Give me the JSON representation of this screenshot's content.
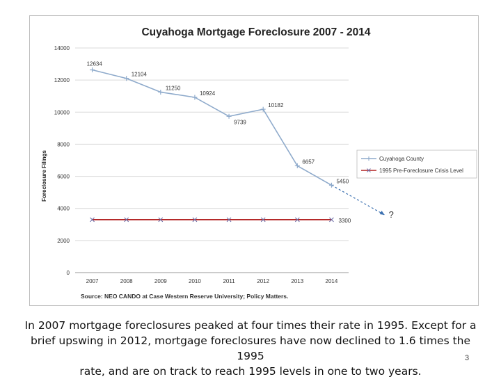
{
  "slide": {
    "caption_lines": [
      "In 2007 mortgage foreclosures peaked at four times their rate in 1995.  Except for a",
      "brief upswing in 2012, mortgage foreclosures have now declined to 1.6 times the 1995",
      "rate, and are on track to reach 1995 levels in one to two years."
    ],
    "page_number": "3"
  },
  "chart_data": {
    "type": "line",
    "title": "Cuyahoga Mortgage Foreclosure 2007 - 2014",
    "ylabel": "Foreclosure Filings",
    "xlabel": "",
    "categories": [
      "2007",
      "2008",
      "2009",
      "2010",
      "2011",
      "2012",
      "2013",
      "2014"
    ],
    "ylim": [
      0,
      14000
    ],
    "yticks": [
      "0",
      "2000",
      "4000",
      "6000",
      "8000",
      "10000",
      "12000",
      "14000"
    ],
    "grid": true,
    "legend_position": "right",
    "source": "Source:   NEO CANDO at Case Western Reserve University;  Policy Matters.",
    "series": [
      {
        "name": "Cuyahoga County",
        "color": "#8eaacb",
        "marker": "plus",
        "values": [
          12634,
          12104,
          11250,
          10924,
          9739,
          10182,
          6657,
          5450
        ],
        "labels": [
          "12634",
          "12104",
          "11250",
          "10924",
          "9739",
          "10182",
          "6657",
          "5450"
        ]
      },
      {
        "name": "1995 Pre-Foreclosure Crisis Level",
        "color": "#b22222",
        "marker": "x",
        "marker_color": "#6f6fa8",
        "values": [
          3300,
          3300,
          3300,
          3300,
          3300,
          3300,
          3300,
          3300
        ],
        "labels": [
          "",
          "",
          "",
          "",
          "",
          "",
          "",
          "3300"
        ]
      }
    ],
    "projection": {
      "to_value": 3600,
      "label": "?",
      "color": "#3a6fb0"
    }
  }
}
